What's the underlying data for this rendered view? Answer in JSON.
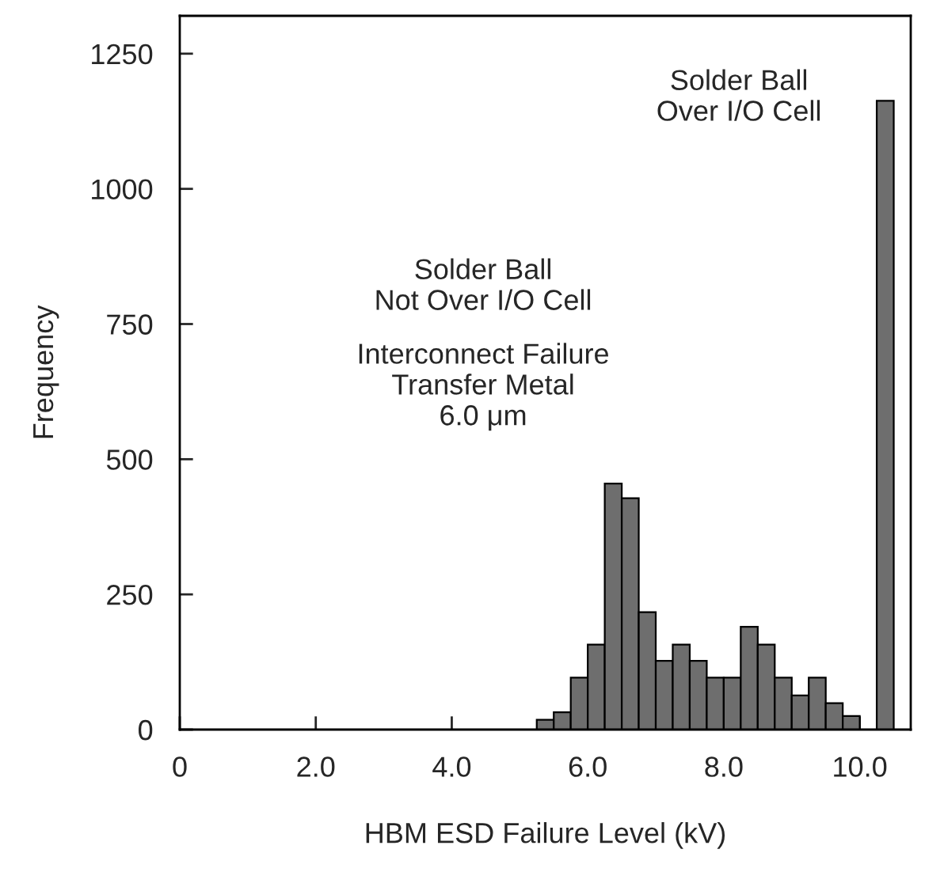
{
  "chart_data": {
    "type": "histogram",
    "xlabel": "HBM ESD Failure Level (kV)",
    "ylabel": "Frequency",
    "bins": [
      5.25,
      5.5,
      5.75,
      6.0,
      6.25,
      6.5,
      6.75,
      7.0,
      7.25,
      7.5,
      7.75,
      8.0,
      8.25,
      8.5,
      8.75,
      9.0,
      9.25,
      9.5,
      9.75,
      10.0,
      10.25,
      10.5
    ],
    "values": [
      18,
      32,
      96,
      157,
      455,
      428,
      217,
      127,
      157,
      127,
      96,
      96,
      190,
      157,
      96,
      63,
      96,
      49,
      25,
      0,
      1163
    ],
    "color": "#6e6e6e",
    "xlim": [
      0,
      10.75
    ],
    "ylim": [
      0,
      1320
    ],
    "xticks": [
      0,
      {
        "value": 2,
        "label": "2.0"
      },
      {
        "value": 4,
        "label": "4.0"
      },
      {
        "value": 6,
        "label": "6.0"
      },
      {
        "value": 8,
        "label": "8.0"
      },
      {
        "value": 10,
        "label": "10.0"
      }
    ],
    "yticks": [
      0,
      250,
      500,
      750,
      1000,
      1250
    ],
    "grid": false,
    "legend": false,
    "annotations": [
      "Solder Ball\nNot Over I/O Cell",
      "Interconnect Failure\nTransfer Metal\n6.0 μm",
      "Solder Ball\nOver I/O Cell"
    ]
  }
}
